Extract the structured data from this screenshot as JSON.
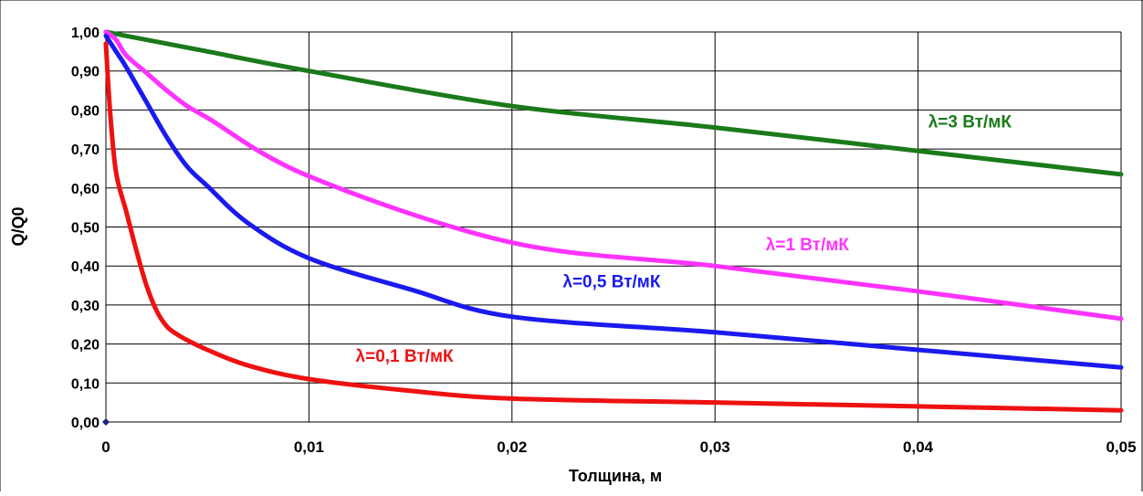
{
  "chart_data": {
    "type": "line",
    "title": "",
    "xlabel": "Толщина, м",
    "ylabel": "Q/Q0",
    "xlim": [
      0,
      0.05
    ],
    "ylim": [
      0,
      1
    ],
    "x_ticks": [
      0,
      0.01,
      0.02,
      0.03,
      0.04,
      0.05
    ],
    "x_tick_labels": [
      "0",
      "0,01",
      "0,02",
      "0,03",
      "0,04",
      "0,05"
    ],
    "y_ticks": [
      0,
      0.1,
      0.2,
      0.3,
      0.4,
      0.5,
      0.6,
      0.7,
      0.8,
      0.9,
      1.0
    ],
    "y_tick_labels": [
      "0,00",
      "0,10",
      "0,20",
      "0,30",
      "0,40",
      "0,50",
      "0,60",
      "0,70",
      "0,80",
      "0,90",
      "1,00"
    ],
    "grid": true,
    "legend": "none",
    "series": [
      {
        "name": "λ=3 Вт/мК",
        "color": "#1a7a1a",
        "x": [
          0,
          0.001,
          0.002,
          0.003,
          0.004,
          0.005,
          0.01,
          0.02,
          0.03,
          0.04,
          0.05
        ],
        "y": [
          1.0,
          0.99,
          0.98,
          0.97,
          0.96,
          0.95,
          0.9,
          0.81,
          0.755,
          0.695,
          0.635
        ]
      },
      {
        "name": "λ=1 Вт/мК",
        "color": "#ff33ff",
        "x": [
          0,
          0.0005,
          0.001,
          0.002,
          0.003,
          0.004,
          0.005,
          0.01,
          0.02,
          0.03,
          0.04,
          0.05
        ],
        "y": [
          1.0,
          0.98,
          0.94,
          0.895,
          0.85,
          0.81,
          0.78,
          0.63,
          0.46,
          0.4,
          0.335,
          0.265
        ]
      },
      {
        "name": "λ=0,5 Вт/мК",
        "color": "#1a1aee",
        "x": [
          0,
          0.0005,
          0.001,
          0.002,
          0.003,
          0.004,
          0.005,
          0.007,
          0.01,
          0.015,
          0.02,
          0.03,
          0.04,
          0.05
        ],
        "y": [
          0.99,
          0.95,
          0.91,
          0.82,
          0.73,
          0.655,
          0.605,
          0.51,
          0.42,
          0.34,
          0.27,
          0.23,
          0.185,
          0.14
        ]
      },
      {
        "name": "λ=0,1 Вт/мК",
        "color": "#ee1111",
        "x": [
          0,
          0.0002,
          0.0005,
          0.001,
          0.0015,
          0.002,
          0.0025,
          0.003,
          0.0035,
          0.004,
          0.005,
          0.007,
          0.01,
          0.015,
          0.02,
          0.03,
          0.04,
          0.05
        ],
        "y": [
          0.97,
          0.8,
          0.64,
          0.54,
          0.44,
          0.35,
          0.285,
          0.245,
          0.225,
          0.21,
          0.185,
          0.145,
          0.11,
          0.08,
          0.06,
          0.05,
          0.04,
          0.03
        ]
      }
    ],
    "annotations": [
      {
        "text": "λ=3 Вт/мК",
        "color": "#1a7a1a",
        "x": 0.0405,
        "y": 0.755
      },
      {
        "text": "λ=1 Вт/мК",
        "color": "#ff33ff",
        "x": 0.0325,
        "y": 0.44
      },
      {
        "text": "λ=0,5 Вт/мК",
        "color": "#1a1aee",
        "x": 0.0225,
        "y": 0.345
      },
      {
        "text": "λ=0,1 Вт/мК",
        "color": "#ee1111",
        "x": 0.0123,
        "y": 0.155
      }
    ],
    "marker": {
      "x": 0,
      "y": 0,
      "color": "#1a237e",
      "shape": "diamond"
    }
  }
}
